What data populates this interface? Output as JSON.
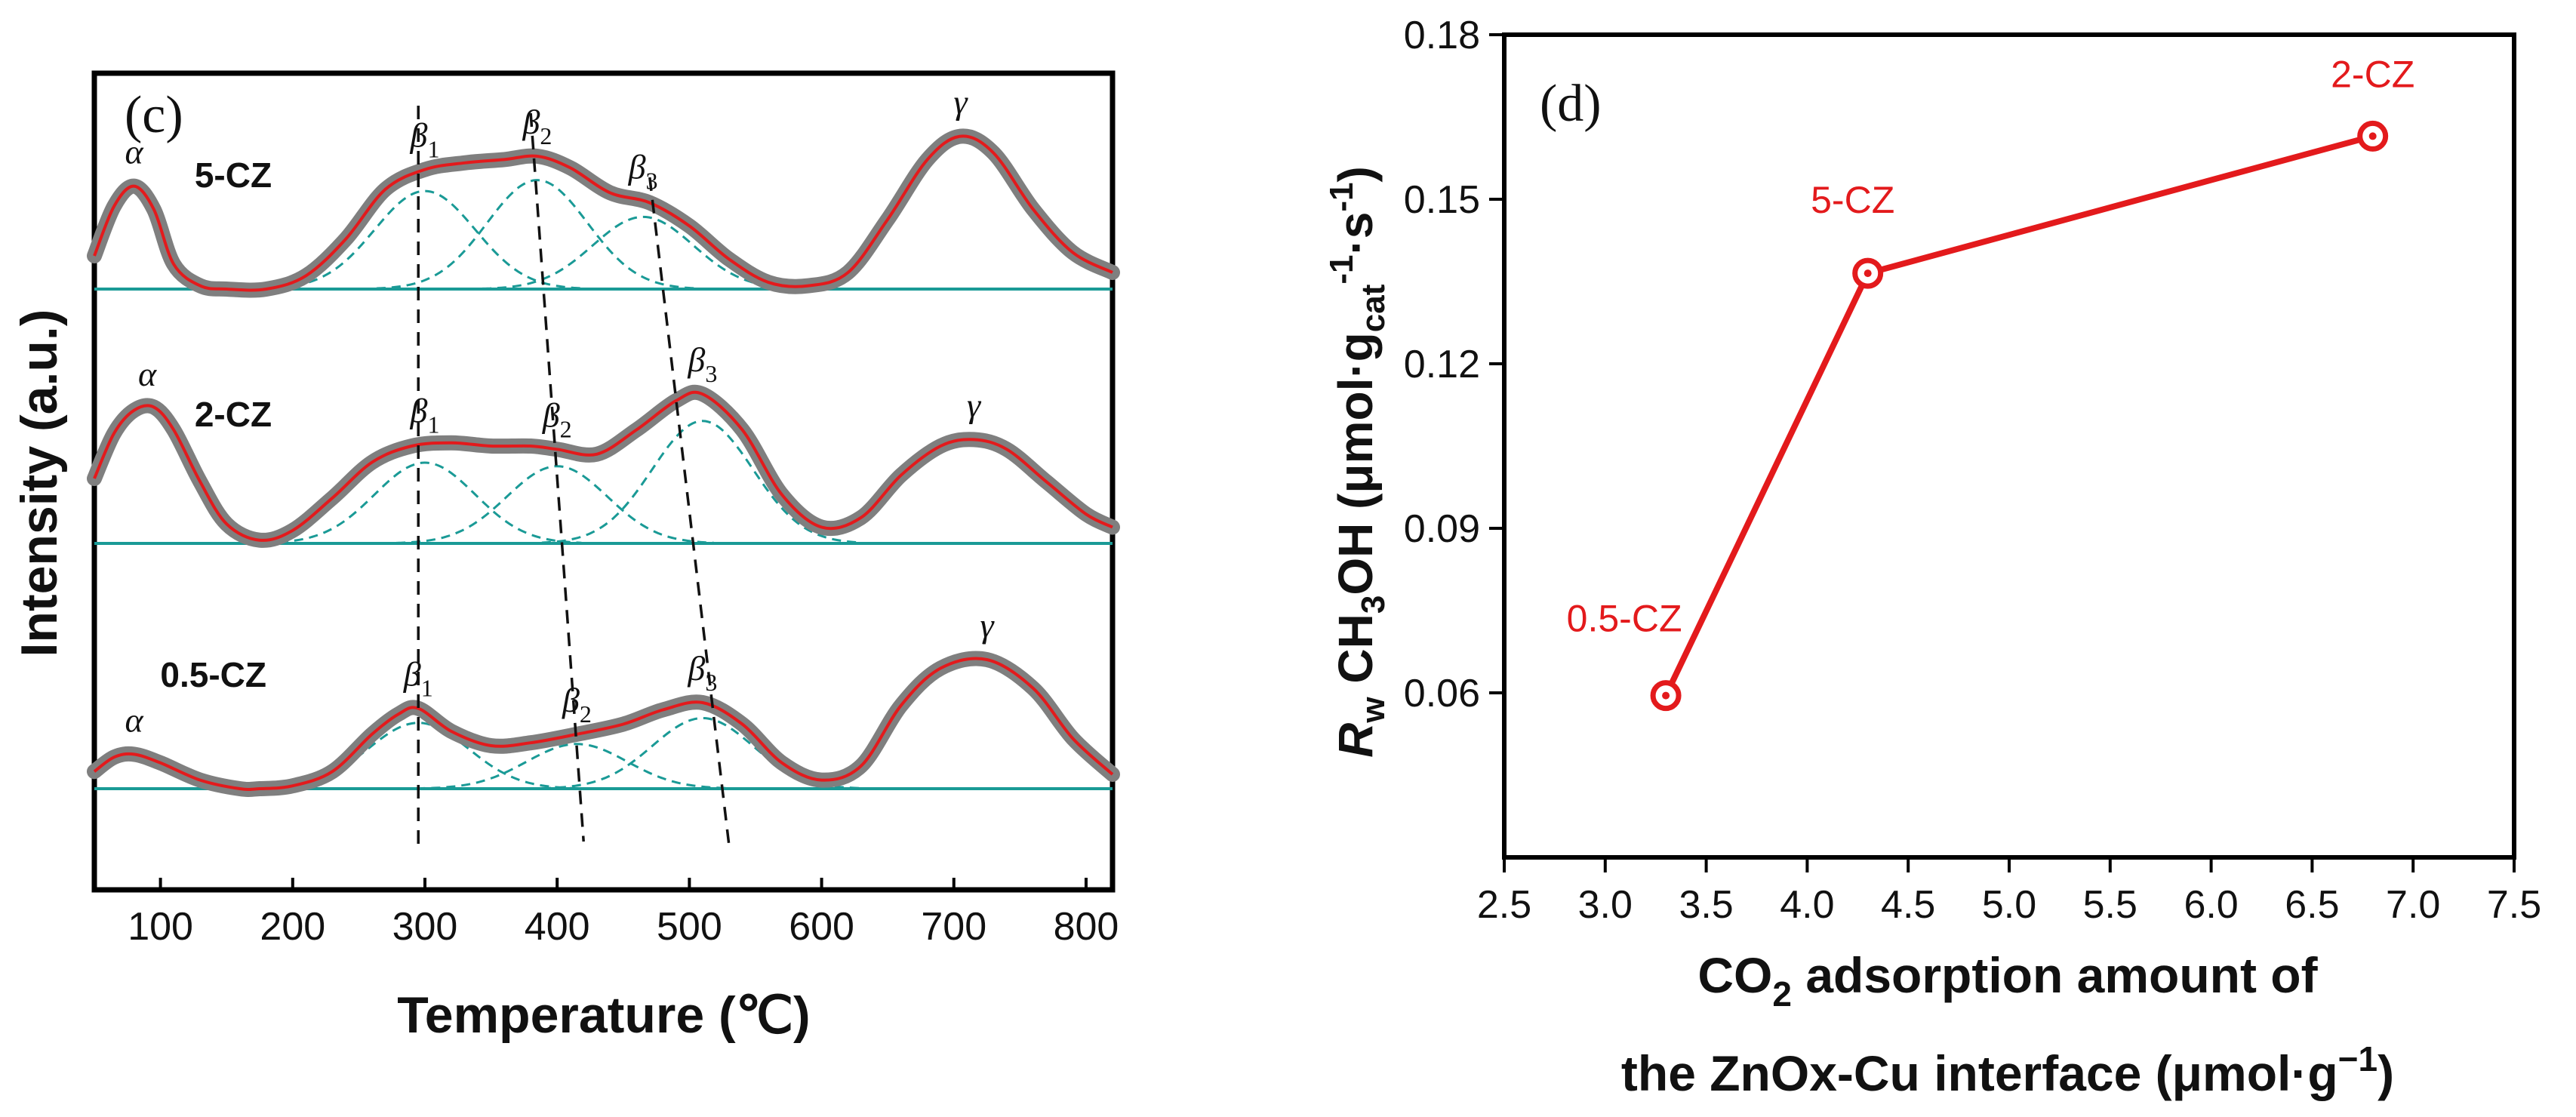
{
  "chart_data": [
    {
      "type": "line",
      "panel_label": "(c)",
      "xlabel": "Temperature (℃)",
      "ylabel": "Intensity (a.u.)",
      "xlim": [
        50,
        820
      ],
      "x_ticks": [
        "100",
        "200",
        "300",
        "400",
        "500",
        "600",
        "700",
        "800"
      ],
      "y_ticks": [],
      "colors": {
        "experimental": "#7f7f7f",
        "fit": "#e31a1c",
        "component": "#1a9a96",
        "guide": "#111111"
      },
      "peak_symbols": {
        "alpha": "α",
        "beta": "β",
        "gamma": "γ"
      },
      "peak_subscripts": [
        "1",
        "2",
        "3"
      ],
      "series": [
        {
          "name": "5-CZ",
          "peaks": {
            "alpha": 80,
            "beta1": 300,
            "beta2": 385,
            "beta3": 465,
            "gamma": 705
          },
          "x": [
            50,
            65,
            80,
            95,
            110,
            130,
            150,
            180,
            210,
            240,
            270,
            300,
            330,
            360,
            385,
            410,
            440,
            470,
            500,
            530,
            560,
            590,
            620,
            650,
            680,
            705,
            730,
            760,
            790,
            820
          ],
          "y": [
            0.2,
            0.5,
            0.62,
            0.48,
            0.15,
            0.02,
            0.0,
            0.0,
            0.08,
            0.3,
            0.6,
            0.72,
            0.76,
            0.78,
            0.8,
            0.73,
            0.58,
            0.52,
            0.38,
            0.18,
            0.04,
            0.02,
            0.1,
            0.42,
            0.78,
            0.92,
            0.82,
            0.48,
            0.22,
            0.1
          ]
        },
        {
          "name": "2-CZ",
          "peaks": {
            "alpha": 90,
            "beta1": 300,
            "beta2": 400,
            "beta3": 510,
            "gamma": 715
          },
          "x": [
            50,
            65,
            80,
            95,
            110,
            130,
            150,
            175,
            200,
            230,
            260,
            290,
            320,
            350,
            380,
            400,
            430,
            460,
            490,
            510,
            540,
            570,
            600,
            630,
            660,
            690,
            715,
            740,
            770,
            800,
            820
          ],
          "y": [
            0.4,
            0.68,
            0.82,
            0.84,
            0.7,
            0.38,
            0.12,
            0.02,
            0.08,
            0.28,
            0.5,
            0.6,
            0.62,
            0.6,
            0.6,
            0.58,
            0.55,
            0.7,
            0.88,
            0.92,
            0.7,
            0.3,
            0.1,
            0.16,
            0.42,
            0.6,
            0.64,
            0.58,
            0.38,
            0.18,
            0.1
          ]
        },
        {
          "name": "0.5-CZ",
          "peaks": {
            "alpha": 80,
            "beta1": 295,
            "beta2": 415,
            "beta3": 510,
            "gamma": 725
          },
          "x": [
            50,
            65,
            80,
            100,
            130,
            160,
            175,
            200,
            230,
            260,
            280,
            295,
            320,
            350,
            380,
            415,
            450,
            480,
            510,
            540,
            570,
            600,
            630,
            660,
            690,
            725,
            760,
            790,
            820
          ],
          "y": [
            0.12,
            0.22,
            0.24,
            0.18,
            0.06,
            0.0,
            0.0,
            0.02,
            0.12,
            0.38,
            0.52,
            0.56,
            0.4,
            0.3,
            0.32,
            0.38,
            0.45,
            0.55,
            0.6,
            0.45,
            0.18,
            0.06,
            0.16,
            0.58,
            0.84,
            0.9,
            0.7,
            0.35,
            0.1
          ]
        }
      ]
    },
    {
      "type": "line",
      "panel_label": "(d)",
      "xlabel_line1": "CO",
      "xlabel_line1_sub": "2",
      "xlabel_line1_rest": " adsorption amount of",
      "xlabel_line2": "the ZnOx-Cu interface (μmol·g",
      "xlabel_line2_sup": "−1",
      "xlabel_line2_end": ")",
      "ylabel": {
        "r": "R",
        "w": "w",
        "ch": " CH",
        "three": "3",
        "oh": "OH (μmol·g",
        "cat": "cat",
        "neg1": "-1",
        "dot_s": "·s",
        "close": ")"
      },
      "xlim": [
        2.5,
        7.5
      ],
      "ylim": [
        0.03,
        0.18
      ],
      "x_ticks": [
        "2.5",
        "3.0",
        "3.5",
        "4.0",
        "4.5",
        "5.0",
        "5.5",
        "6.0",
        "6.5",
        "7.0",
        "7.5"
      ],
      "y_ticks": [
        "0.06",
        "0.09",
        "0.12",
        "0.15",
        "0.18"
      ],
      "color": "#e31a1c",
      "points": [
        {
          "label": "0.5-CZ",
          "x": 3.3,
          "y": 0.0595
        },
        {
          "label": "5-CZ",
          "x": 4.3,
          "y": 0.1365
        },
        {
          "label": "2-CZ",
          "x": 6.8,
          "y": 0.1615
        }
      ]
    }
  ]
}
